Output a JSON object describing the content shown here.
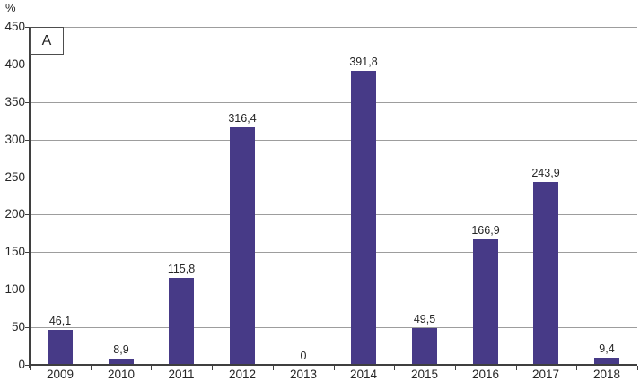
{
  "chart_data": {
    "type": "bar",
    "title": "",
    "panel_label": "A",
    "ylabel": "%",
    "xlabel": "",
    "categories": [
      "2009",
      "2010",
      "2011",
      "2012",
      "2013",
      "2014",
      "2015",
      "2016",
      "2017",
      "2018"
    ],
    "values": [
      46.1,
      8.9,
      115.8,
      316.4,
      0,
      391.8,
      49.5,
      166.9,
      243.9,
      9.4
    ],
    "value_labels": [
      "46,1",
      "8,9",
      "115,8",
      "316,4",
      "0",
      "391,8",
      "49,5",
      "166,9",
      "243,9",
      "9,4"
    ],
    "ylim": [
      0,
      450
    ],
    "ytick_labels": [
      "0",
      "50",
      "100",
      "150",
      "200",
      "250",
      "300",
      "350",
      "400",
      "450"
    ],
    "grid": true,
    "legend": "none",
    "colors": {
      "bar": "#473a87",
      "gridline": "#9d9d9d",
      "axis": "#3f3f3f",
      "text": "#262626"
    }
  }
}
